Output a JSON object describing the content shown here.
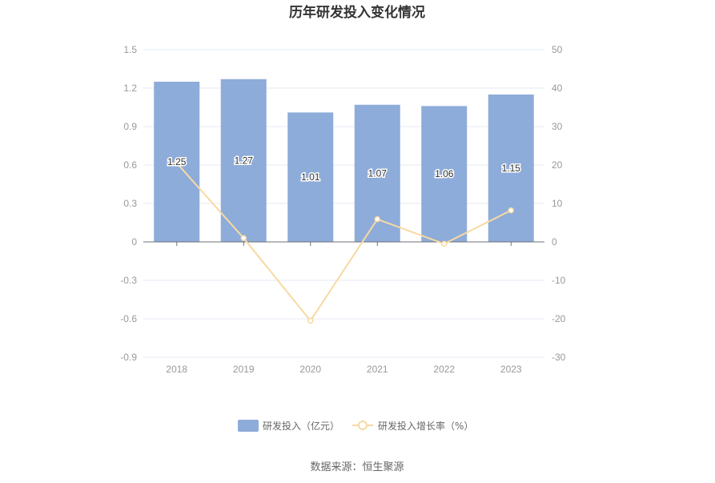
{
  "chart_data": {
    "type": "bar",
    "title": "历年研发投入变化情况",
    "categories": [
      "2018",
      "2019",
      "2020",
      "2021",
      "2022",
      "2023"
    ],
    "series": [
      {
        "name": "研发投入（亿元）",
        "type": "bar",
        "axis": "left",
        "values": [
          1.25,
          1.27,
          1.01,
          1.07,
          1.06,
          1.15
        ],
        "labels": [
          "1.25",
          "1.27",
          "1.01",
          "1.07",
          "1.06",
          "1.15"
        ],
        "color": "#8eacd9"
      },
      {
        "name": "研发投入增长率（%）",
        "type": "line",
        "axis": "right",
        "values": [
          20.5,
          1.0,
          -20.5,
          5.9,
          -0.5,
          8.2
        ],
        "color": "#f7d9a3"
      }
    ],
    "y_left": {
      "ylim": [
        -0.9,
        1.5
      ],
      "ticks": [
        "1.5",
        "1.2",
        "0.9",
        "0.6",
        "0.3",
        "0",
        "-0.3",
        "-0.6",
        "-0.9"
      ]
    },
    "y_right": {
      "ylim": [
        -30,
        50
      ],
      "ticks": [
        "50",
        "40",
        "30",
        "20",
        "10",
        "0",
        "-10",
        "-20",
        "-30"
      ]
    },
    "grid": true,
    "legend_position": "bottom"
  },
  "source": "数据来源：恒生聚源",
  "colors": {
    "grid": "#e6e9f5",
    "axis": "#6e7079",
    "tick_text": "#999999"
  }
}
